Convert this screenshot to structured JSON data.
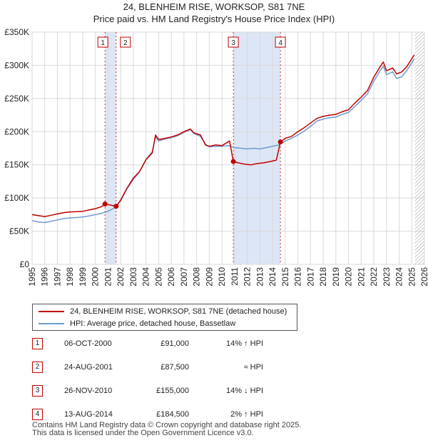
{
  "chart_data": {
    "type": "line",
    "title": "24, BLENHEIM RISE, WORKSOP, S81 7NE",
    "subtitle": "Price paid vs. HM Land Registry's House Price Index (HPI)",
    "xlim": [
      1995,
      2026
    ],
    "ylim": [
      0,
      350000
    ],
    "y_ticks": [
      {
        "value": 0,
        "label": "£0"
      },
      {
        "value": 50000,
        "label": "£50K"
      },
      {
        "value": 100000,
        "label": "£100K"
      },
      {
        "value": 150000,
        "label": "£150K"
      },
      {
        "value": 200000,
        "label": "£200K"
      },
      {
        "value": 250000,
        "label": "£250K"
      },
      {
        "value": 300000,
        "label": "£300K"
      },
      {
        "value": 350000,
        "label": "£350K"
      }
    ],
    "x_ticks": [
      "1995",
      "1996",
      "1997",
      "1998",
      "1999",
      "2000",
      "2001",
      "2002",
      "2003",
      "2004",
      "2005",
      "2006",
      "2007",
      "2008",
      "2009",
      "2010",
      "2011",
      "2012",
      "2013",
      "2014",
      "2015",
      "2016",
      "2017",
      "2018",
      "2019",
      "2020",
      "2021",
      "2022",
      "2023",
      "2024",
      "2025",
      "2026"
    ],
    "grid": true,
    "shaded_periods": [
      [
        2000.76,
        2001.64
      ],
      [
        2010.9,
        2014.62
      ]
    ],
    "data_end": 2025.25,
    "series": [
      {
        "name": "24, BLENHEIM RISE, WORKSOP, S81 7NE (detached house)",
        "color": "#c00000",
        "points": [
          [
            1995.0,
            75000
          ],
          [
            1995.5,
            73500
          ],
          [
            1996.0,
            72000
          ],
          [
            1996.5,
            74000
          ],
          [
            1997.0,
            76000
          ],
          [
            1997.5,
            78000
          ],
          [
            1998.0,
            79000
          ],
          [
            1998.5,
            79500
          ],
          [
            1999.0,
            80000
          ],
          [
            1999.5,
            82000
          ],
          [
            2000.0,
            84000
          ],
          [
            2000.5,
            87000
          ],
          [
            2000.76,
            91000
          ],
          [
            2001.0,
            90000
          ],
          [
            2001.3,
            89000
          ],
          [
            2001.64,
            87500
          ],
          [
            2002.0,
            97000
          ],
          [
            2002.5,
            115000
          ],
          [
            2003.0,
            130000
          ],
          [
            2003.5,
            140000
          ],
          [
            2004.0,
            158000
          ],
          [
            2004.5,
            168000
          ],
          [
            2004.75,
            195000
          ],
          [
            2005.0,
            188000
          ],
          [
            2005.5,
            190000
          ],
          [
            2006.0,
            192000
          ],
          [
            2006.5,
            195000
          ],
          [
            2007.0,
            200000
          ],
          [
            2007.5,
            204000
          ],
          [
            2007.8,
            198000
          ],
          [
            2008.3,
            195000
          ],
          [
            2008.7,
            180000
          ],
          [
            2009.0,
            178000
          ],
          [
            2009.5,
            180000
          ],
          [
            2010.0,
            179000
          ],
          [
            2010.6,
            186000
          ],
          [
            2010.9,
            155000
          ],
          [
            2011.3,
            153000
          ],
          [
            2011.8,
            151000
          ],
          [
            2012.3,
            150000
          ],
          [
            2012.8,
            152000
          ],
          [
            2013.3,
            153000
          ],
          [
            2013.8,
            155000
          ],
          [
            2014.3,
            157000
          ],
          [
            2014.62,
            184500
          ],
          [
            2015.0,
            190000
          ],
          [
            2015.5,
            193000
          ],
          [
            2016.0,
            200000
          ],
          [
            2016.5,
            206000
          ],
          [
            2017.0,
            213000
          ],
          [
            2017.5,
            220000
          ],
          [
            2018.0,
            223000
          ],
          [
            2018.5,
            225000
          ],
          [
            2019.0,
            226000
          ],
          [
            2019.5,
            230000
          ],
          [
            2020.0,
            233000
          ],
          [
            2020.5,
            243000
          ],
          [
            2021.0,
            252000
          ],
          [
            2021.5,
            262000
          ],
          [
            2022.0,
            282000
          ],
          [
            2022.5,
            298000
          ],
          [
            2022.75,
            305000
          ],
          [
            2023.0,
            292000
          ],
          [
            2023.5,
            296000
          ],
          [
            2023.8,
            287000
          ],
          [
            2024.2,
            290000
          ],
          [
            2024.6,
            298000
          ],
          [
            2025.0,
            310000
          ],
          [
            2025.2,
            316000
          ]
        ]
      },
      {
        "name": "HPI: Average price, detached house, Bassetlaw",
        "color": "#6f9bd0",
        "points": [
          [
            1995.0,
            66000
          ],
          [
            1995.5,
            64000
          ],
          [
            1996.0,
            63000
          ],
          [
            1996.5,
            65000
          ],
          [
            1997.0,
            67000
          ],
          [
            1997.5,
            69000
          ],
          [
            1998.0,
            70000
          ],
          [
            1998.5,
            70500
          ],
          [
            1999.0,
            71500
          ],
          [
            1999.5,
            73000
          ],
          [
            2000.0,
            75000
          ],
          [
            2000.5,
            77000
          ],
          [
            2001.0,
            80000
          ],
          [
            2001.5,
            85000
          ],
          [
            2002.0,
            96000
          ],
          [
            2002.5,
            114000
          ],
          [
            2003.0,
            128000
          ],
          [
            2003.5,
            140000
          ],
          [
            2004.0,
            158000
          ],
          [
            2004.5,
            170000
          ],
          [
            2004.75,
            192000
          ],
          [
            2005.0,
            186000
          ],
          [
            2005.5,
            189000
          ],
          [
            2006.0,
            191000
          ],
          [
            2006.5,
            194000
          ],
          [
            2007.0,
            199000
          ],
          [
            2007.5,
            203000
          ],
          [
            2007.8,
            197000
          ],
          [
            2008.3,
            193000
          ],
          [
            2008.7,
            181000
          ],
          [
            2009.0,
            177000
          ],
          [
            2009.5,
            178000
          ],
          [
            2010.0,
            178000
          ],
          [
            2010.5,
            179000
          ],
          [
            2011.0,
            176000
          ],
          [
            2011.5,
            175000
          ],
          [
            2012.0,
            174000
          ],
          [
            2012.5,
            175000
          ],
          [
            2013.0,
            174000
          ],
          [
            2013.5,
            176000
          ],
          [
            2014.0,
            178000
          ],
          [
            2014.5,
            180000
          ],
          [
            2015.0,
            186000
          ],
          [
            2015.5,
            190000
          ],
          [
            2016.0,
            195000
          ],
          [
            2016.5,
            201000
          ],
          [
            2017.0,
            208000
          ],
          [
            2017.5,
            216000
          ],
          [
            2018.0,
            219000
          ],
          [
            2018.5,
            221000
          ],
          [
            2019.0,
            222000
          ],
          [
            2019.5,
            226000
          ],
          [
            2020.0,
            229000
          ],
          [
            2020.5,
            238000
          ],
          [
            2021.0,
            247000
          ],
          [
            2021.5,
            257000
          ],
          [
            2022.0,
            276000
          ],
          [
            2022.5,
            292000
          ],
          [
            2022.75,
            299000
          ],
          [
            2023.0,
            286000
          ],
          [
            2023.5,
            290000
          ],
          [
            2023.8,
            280000
          ],
          [
            2024.2,
            283000
          ],
          [
            2024.6,
            292000
          ],
          [
            2025.0,
            304000
          ],
          [
            2025.2,
            310000
          ]
        ]
      }
    ],
    "transactions": [
      {
        "label": "1",
        "date": "06-OCT-2000",
        "x": 2000.76,
        "price_value": 91000,
        "price": "£91,000",
        "hpi": "14% ↑ HPI"
      },
      {
        "label": "2",
        "date": "24-AUG-2001",
        "x": 2001.64,
        "price_value": 87500,
        "price": "£87,500",
        "hpi": "≈ HPI"
      },
      {
        "label": "3",
        "date": "26-NOV-2010",
        "x": 2010.9,
        "price_value": 155000,
        "price": "£155,000",
        "hpi": "14% ↓ HPI"
      },
      {
        "label": "4",
        "date": "13-AUG-2014",
        "x": 2014.62,
        "price_value": 184500,
        "price": "£184,500",
        "hpi": "2% ↑ HPI"
      }
    ]
  },
  "legend": {
    "property_label": "24, BLENHEIM RISE, WORKSOP, S81 7NE (detached house)",
    "hpi_label": "HPI: Average price, detached house, Bassetlaw",
    "property_color": "#c00000",
    "hpi_color": "#6f9bd0"
  },
  "footer": {
    "line1": "Contains HM Land Registry data © Crown copyright and database right 2025.",
    "line2": "This data is licensed under the Open Government Licence v3.0."
  }
}
